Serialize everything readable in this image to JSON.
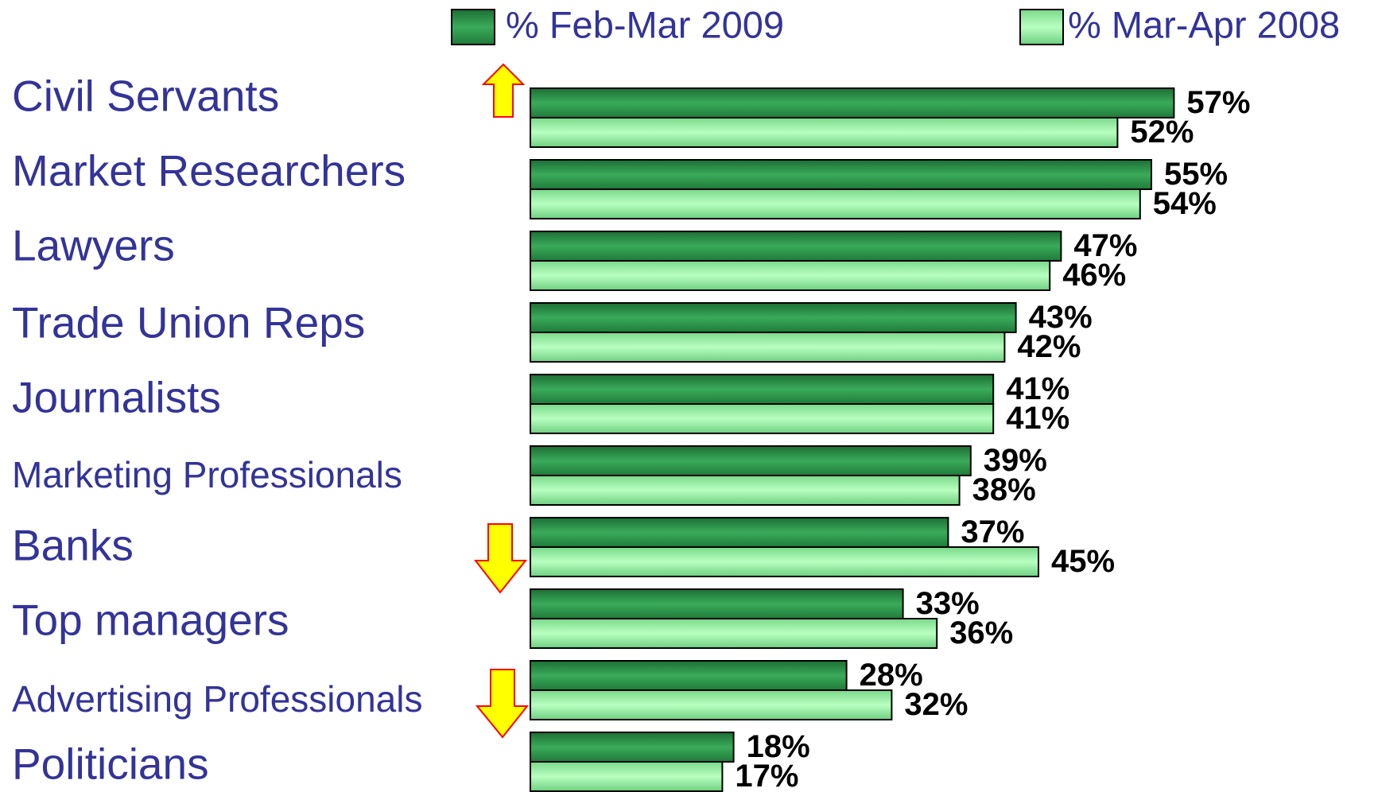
{
  "chart_data": {
    "type": "barh",
    "categories": [
      "Civil Servants",
      "Market Researchers",
      "Lawyers",
      "Trade Union Reps",
      "Journalists",
      "Marketing Professionals",
      "Banks",
      "Top managers",
      "Advertising Professionals",
      "Politicians"
    ],
    "series": [
      {
        "name": "% Feb-Mar 2009",
        "color": "#2a9448",
        "values": [
          57,
          55,
          47,
          43,
          41,
          39,
          37,
          33,
          28,
          18
        ],
        "value_labels": [
          "57%",
          "55%",
          "47%",
          "43%",
          "41%",
          "39%",
          "37%",
          "33%",
          "28%",
          "18%"
        ]
      },
      {
        "name": "% Mar-Apr 2008",
        "color": "#9ef0a8",
        "values": [
          52,
          54,
          46,
          42,
          41,
          38,
          45,
          36,
          32,
          17
        ],
        "value_labels": [
          "52%",
          "54%",
          "46%",
          "42%",
          "41%",
          "38%",
          "45%",
          "36%",
          "32%",
          "17%"
        ]
      }
    ],
    "legend": "top"
  }
}
